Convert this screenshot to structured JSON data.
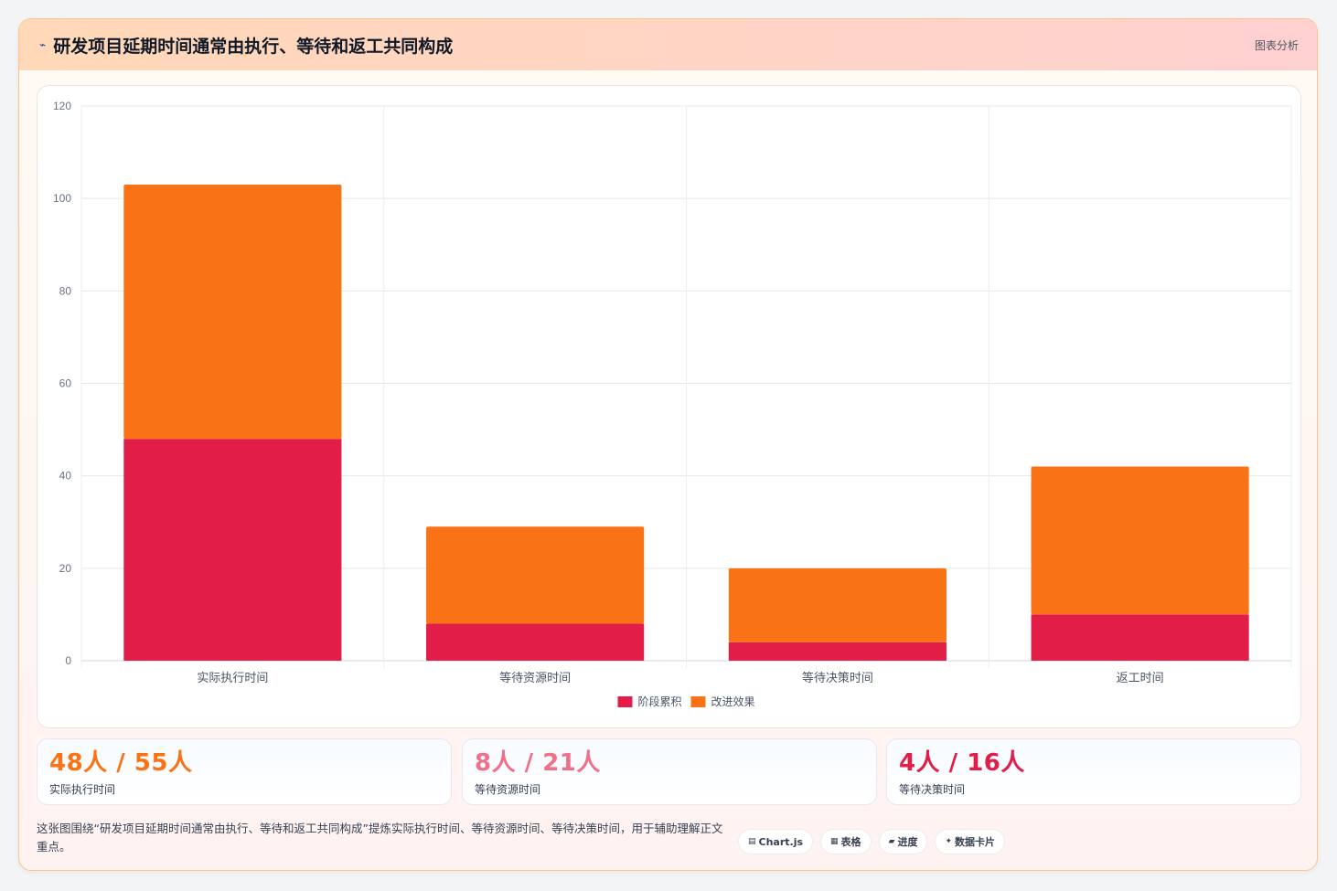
{
  "header": {
    "icon": "chart-line-icon",
    "title": "研发项目延期时间通常由执行、等待和返工共同构成",
    "tag": "图表分析"
  },
  "chart_data": {
    "type": "bar",
    "stacked": true,
    "categories": [
      "实际执行时间",
      "等待资源时间",
      "等待决策时间",
      "返工时间"
    ],
    "series": [
      {
        "name": "阶段累积",
        "color": "#e11d48",
        "values": [
          48,
          8,
          4,
          10
        ]
      },
      {
        "name": "改进效果",
        "color": "#f97316",
        "values": [
          55,
          21,
          16,
          32
        ]
      }
    ],
    "ylim": [
      0,
      120
    ],
    "yticks": [
      0,
      20,
      40,
      60,
      80,
      100,
      120
    ],
    "grid": true,
    "legend": "bottom"
  },
  "stats": [
    {
      "value": "48人 / 55人",
      "label": "实际执行时间",
      "color": "#f97316"
    },
    {
      "value": "8人 / 21人",
      "label": "等待资源时间",
      "color": "#f0708a"
    },
    {
      "value": "4人 / 16人",
      "label": "等待决策时间",
      "color": "#e11d48"
    }
  ],
  "footer": {
    "description": "这张图围绕“研发项目延期时间通常由执行、等待和返工共同构成”提炼实际执行时间、等待资源时间、等待决策时间，用于辅助理解正文重点。",
    "chips": [
      {
        "icon": "▤",
        "label": "Chart.js"
      },
      {
        "icon": "▦",
        "label": "表格"
      },
      {
        "icon": "▰",
        "label": "进度"
      },
      {
        "icon": "✦",
        "label": "数据卡片"
      }
    ]
  }
}
